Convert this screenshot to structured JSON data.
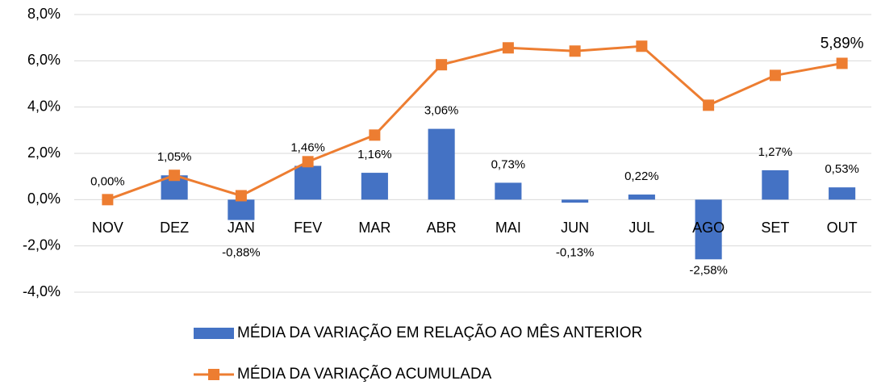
{
  "chart_data": {
    "type": "combo",
    "categories": [
      "NOV",
      "DEZ",
      "JAN",
      "FEV",
      "MAR",
      "ABR",
      "MAI",
      "JUN",
      "JUL",
      "AGO",
      "SET",
      "OUT"
    ],
    "series": [
      {
        "name": "MÉDIA DA VARIAÇÃO EM RELAÇÃO AO MÊS ANTERIOR",
        "type": "bar",
        "color": "#4472c4",
        "values": [
          0.0,
          1.05,
          -0.88,
          1.46,
          1.16,
          3.06,
          0.73,
          -0.13,
          0.22,
          -2.58,
          1.27,
          0.53
        ],
        "value_labels": [
          "0,00%",
          "1,05%",
          "-0,88%",
          "1,46%",
          "1,16%",
          "3,06%",
          "0,73%",
          "-0,13%",
          "0,22%",
          "-2,58%",
          "1,27%",
          "0,53%"
        ]
      },
      {
        "name": "MÉDIA DA VARIAÇÃO ACUMULADA",
        "type": "line",
        "color": "#ed7d31",
        "values": [
          0.0,
          1.05,
          0.17,
          1.64,
          2.79,
          5.83,
          6.56,
          6.42,
          6.63,
          4.08,
          5.37,
          5.89
        ],
        "value_labels": [
          null,
          null,
          null,
          null,
          null,
          null,
          null,
          null,
          null,
          null,
          null,
          "5,89%"
        ]
      }
    ],
    "ylim": [
      -4,
      8
    ],
    "yticks": [
      {
        "value": -4,
        "label": "-4,0%"
      },
      {
        "value": -2,
        "label": "-2,0%"
      },
      {
        "value": 0,
        "label": "0,0%"
      },
      {
        "value": 2,
        "label": "2,0%"
      },
      {
        "value": 4,
        "label": "4,0%"
      },
      {
        "value": 6,
        "label": "6,0%"
      },
      {
        "value": 8,
        "label": "8,0%"
      }
    ],
    "grid": true,
    "legend": "bottom"
  }
}
